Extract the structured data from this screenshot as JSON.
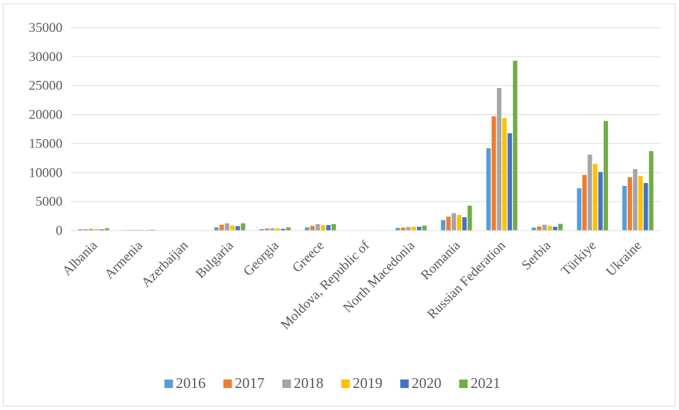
{
  "chart_data": {
    "type": "bar",
    "categories": [
      "Albania",
      "Armenia",
      "Azerbaijan",
      "Bulgaria",
      "Georgia",
      "Greece",
      "Moldova, Republic of",
      "North Macedonia",
      "Romania",
      "Russian Federation",
      "Serbia",
      "Türkiye",
      "Ukraine"
    ],
    "series": [
      {
        "name": "2016",
        "color": "#5B9BD5",
        "values": [
          200,
          80,
          30,
          550,
          250,
          550,
          20,
          450,
          1800,
          14200,
          500,
          7300,
          7700
        ]
      },
      {
        "name": "2017",
        "color": "#ED7D31",
        "values": [
          220,
          100,
          30,
          1000,
          350,
          800,
          20,
          500,
          2400,
          19700,
          700,
          9600,
          9200
        ]
      },
      {
        "name": "2018",
        "color": "#A5A5A5",
        "values": [
          300,
          120,
          30,
          1250,
          400,
          1100,
          20,
          600,
          3000,
          24600,
          1000,
          13100,
          10600
        ]
      },
      {
        "name": "2019",
        "color": "#FFC000",
        "values": [
          250,
          110,
          30,
          850,
          380,
          900,
          20,
          650,
          2700,
          19400,
          800,
          11500,
          9400
        ]
      },
      {
        "name": "2020",
        "color": "#4472C4",
        "values": [
          200,
          90,
          20,
          750,
          300,
          950,
          20,
          650,
          2300,
          16800,
          650,
          10100,
          8200
        ]
      },
      {
        "name": "2021",
        "color": "#70AD47",
        "values": [
          400,
          140,
          30,
          1250,
          550,
          1100,
          30,
          850,
          4300,
          29300,
          1150,
          18900,
          13700
        ]
      }
    ],
    "title": "",
    "xlabel": "",
    "ylabel": "",
    "ylim": [
      0,
      35000
    ],
    "yticks": [
      "0",
      "5000",
      "10000",
      "15000",
      "20000",
      "25000",
      "30000",
      "35000"
    ],
    "grid": true,
    "legend": "bottom"
  }
}
